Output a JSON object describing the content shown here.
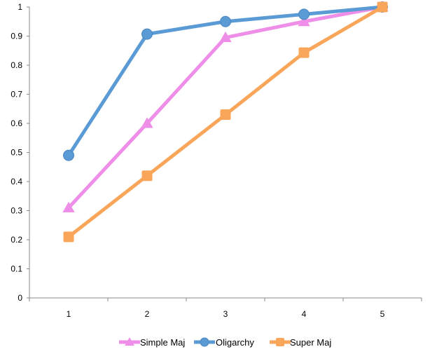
{
  "chart_data": {
    "type": "line",
    "title": "",
    "xlabel": "",
    "ylabel": "",
    "categories": [
      "1",
      "2",
      "3",
      "4",
      "5"
    ],
    "ylim": [
      0,
      1
    ],
    "yticks": [
      "0",
      "0.1",
      "0.2",
      "0.3",
      "0.4",
      "0.5",
      "0.6",
      "0.7",
      "0.8",
      "0.9",
      "1"
    ],
    "grid": false,
    "legend_position": "bottom",
    "series": [
      {
        "name": "Simple Maj",
        "values": [
          0.31,
          0.6,
          0.895,
          0.95,
          1.0
        ],
        "color": "#ee8ee8",
        "marker": "triangle"
      },
      {
        "name": "Oligarchy",
        "values": [
          0.49,
          0.907,
          0.95,
          0.975,
          1.0
        ],
        "color": "#5b9bd5",
        "marker": "circle"
      },
      {
        "name": "Super Maj",
        "values": [
          0.21,
          0.42,
          0.63,
          0.843,
          1.0
        ],
        "color": "#f9a65a",
        "marker": "square"
      }
    ]
  }
}
